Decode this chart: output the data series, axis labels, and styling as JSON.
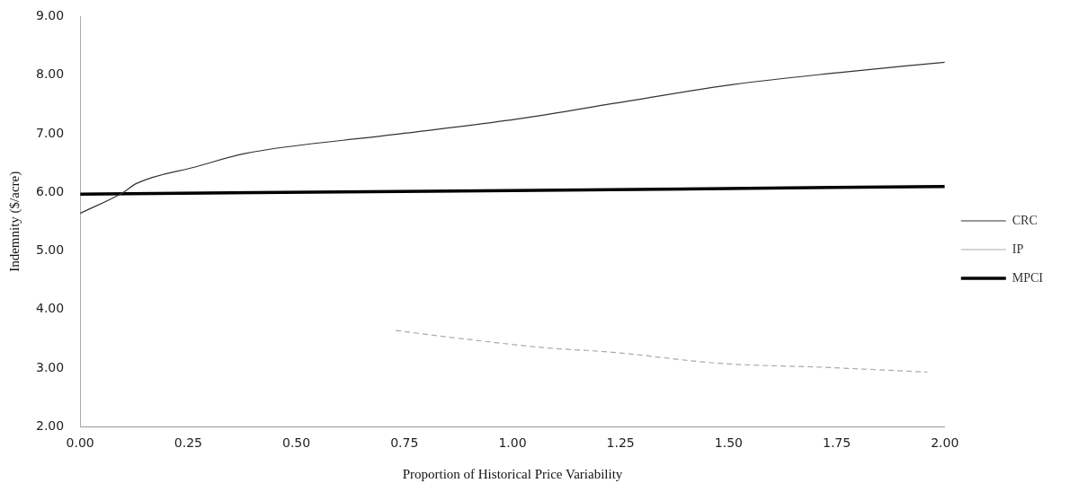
{
  "chart_data": {
    "type": "line",
    "xlabel": "Proportion of Historical Price Variability",
    "ylabel": "Indemnity ($/acre)",
    "xlim": [
      0,
      2
    ],
    "xticks": [
      {
        "value": 0,
        "label": "0.00"
      },
      {
        "value": 0.25,
        "label": "0.25"
      },
      {
        "value": 0.5,
        "label": "0.50"
      },
      {
        "value": 0.75,
        "label": "0.75"
      },
      {
        "value": 1,
        "label": "1.00"
      },
      {
        "value": 1.25,
        "label": "1.25"
      },
      {
        "value": 1.5,
        "label": "1.50"
      },
      {
        "value": 1.75,
        "label": "1.75"
      },
      {
        "value": 2,
        "label": "2.00"
      }
    ],
    "ylim": [
      2,
      9
    ],
    "yticks": [
      {
        "value": 2,
        "label": "2.00"
      },
      {
        "value": 3,
        "label": "3.00"
      },
      {
        "value": 4,
        "label": "4.00"
      },
      {
        "value": 5,
        "label": "5.00"
      },
      {
        "value": 6,
        "label": "6.00"
      },
      {
        "value": 7,
        "label": "7.00"
      },
      {
        "value": 8,
        "label": "8.00"
      },
      {
        "value": 9,
        "label": "9.00"
      }
    ],
    "grid": false,
    "legend": "right",
    "marker": "none",
    "series": [
      {
        "name": "CRC",
        "color": "#333333",
        "line_style": "solid",
        "x": [
          0,
          0.1,
          0.13,
          0.27,
          0.38,
          0.72,
          1.01,
          1.27,
          1.51,
          1.75,
          2
        ],
        "values": [
          5.64,
          6.0,
          6.15,
          6.44,
          6.66,
          6.98,
          7.25,
          7.56,
          7.84,
          8.04,
          8.22
        ]
      },
      {
        "name": "IP",
        "color": "#aaaaaa",
        "line_style": "dashed",
        "x": [
          0.73,
          0.885,
          1.07,
          1.23,
          1.48,
          1.73,
          1.96
        ],
        "values": [
          3.64,
          3.5,
          3.35,
          3.27,
          3.08,
          3.01,
          2.93
        ]
      },
      {
        "name": "MPCI",
        "color": "#000000",
        "line_style": "solid",
        "x": [
          0,
          1,
          2
        ],
        "values": [
          5.97,
          6.03,
          6.1
        ]
      }
    ]
  }
}
